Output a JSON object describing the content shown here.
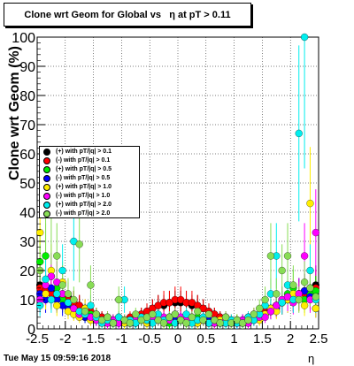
{
  "chart_data": {
    "type": "scatter",
    "title": "Clone wrt Geom for Global vs   η at pT > 0.11",
    "xlabel": "η",
    "ylabel": "Clone wrt Geom (%)",
    "xlim": [
      -2.5,
      2.5
    ],
    "ylim": [
      0,
      100
    ],
    "x_ticks": [
      "-2.5",
      "-2",
      "-1.5",
      "-1",
      "-0.5",
      "0",
      "0.5",
      "1",
      "1.5",
      "2",
      "2.5"
    ],
    "y_ticks": [
      "0",
      "10",
      "20",
      "30",
      "40",
      "50",
      "60",
      "70",
      "80",
      "90",
      "100"
    ],
    "grid": true,
    "legend_position": "left-middle",
    "series": [
      {
        "name": "(+) with pT/|q| > 0.1",
        "color": "#000000",
        "x": [
          -2.45,
          -2.35,
          -2.25,
          -2.15,
          -2.05,
          -1.95,
          -1.85,
          -1.75,
          -1.65,
          -1.55,
          -1.45,
          -1.35,
          -1.25,
          -1.15,
          -1.05,
          -0.95,
          -0.85,
          -0.75,
          -0.65,
          -0.55,
          -0.45,
          -0.35,
          -0.25,
          -0.15,
          -0.05,
          0.05,
          0.15,
          0.25,
          0.35,
          0.45,
          0.55,
          0.65,
          0.75,
          0.85,
          0.95,
          1.05,
          1.15,
          1.25,
          1.35,
          1.45,
          1.55,
          1.65,
          1.75,
          1.85,
          1.95,
          2.05,
          2.15,
          2.25,
          2.35,
          2.45
        ],
        "y": [
          15,
          14,
          13,
          12,
          12,
          11,
          9,
          8,
          7,
          6,
          5,
          4,
          4,
          3,
          3,
          3,
          3,
          4,
          5,
          6,
          7,
          8,
          8,
          9,
          9,
          9,
          9,
          8,
          8,
          7,
          6,
          5,
          4,
          4,
          3,
          3,
          3,
          4,
          4,
          5,
          6,
          7,
          8,
          9,
          10,
          11,
          12,
          13,
          14,
          15
        ]
      },
      {
        "name": "(-) with pT/|q| > 0.1",
        "color": "#ff0000",
        "x": [
          -2.45,
          -2.35,
          -2.25,
          -2.15,
          -2.05,
          -1.95,
          -1.85,
          -1.75,
          -1.65,
          -1.55,
          -1.45,
          -1.35,
          -1.25,
          -1.15,
          -1.05,
          -0.95,
          -0.85,
          -0.75,
          -0.65,
          -0.55,
          -0.45,
          -0.35,
          -0.25,
          -0.15,
          -0.05,
          0.05,
          0.15,
          0.25,
          0.35,
          0.45,
          0.55,
          0.65,
          0.75,
          0.85,
          0.95,
          1.05,
          1.15,
          1.25,
          1.35,
          1.45,
          1.55,
          1.65,
          1.75,
          1.85,
          1.95,
          2.05,
          2.15,
          2.25,
          2.35,
          2.45
        ],
        "y": [
          14,
          13,
          12,
          11,
          11,
          10,
          9,
          8,
          7,
          6,
          5,
          4,
          4,
          3,
          3,
          3,
          4,
          4,
          5,
          6,
          7,
          8,
          9,
          9,
          10,
          10,
          9,
          9,
          8,
          7,
          6,
          5,
          4,
          4,
          3,
          3,
          3,
          4,
          5,
          5,
          6,
          7,
          8,
          9,
          10,
          10,
          11,
          12,
          13,
          14
        ]
      },
      {
        "name": "(+) with pT/|q| > 0.5",
        "color": "#00ee00",
        "x": [
          -2.45,
          -2.35,
          -2.25,
          -2.15,
          -2.05,
          -1.95,
          -1.85,
          -1.75,
          -1.65,
          -1.55,
          -1.45,
          -1.35,
          -1.25,
          -1.15,
          -1.05,
          -0.95,
          -0.85,
          -0.75,
          -0.65,
          -0.55,
          -0.45,
          -0.35,
          -0.25,
          -0.15,
          -0.05,
          0.05,
          0.15,
          0.25,
          0.35,
          0.45,
          0.55,
          0.65,
          0.75,
          0.85,
          0.95,
          1.05,
          1.15,
          1.25,
          1.35,
          1.45,
          1.55,
          1.65,
          1.75,
          1.85,
          1.95,
          2.05,
          2.15,
          2.25,
          2.35,
          2.45
        ],
        "y": [
          23,
          25,
          18,
          14,
          10,
          8,
          6,
          5,
          4,
          5,
          4,
          3,
          2,
          3,
          3,
          2,
          2,
          2,
          3,
          2,
          3,
          4,
          3,
          2,
          4,
          3,
          2,
          3,
          4,
          3,
          2,
          3,
          2,
          2,
          2,
          3,
          2,
          2,
          3,
          4,
          5,
          6,
          8,
          10,
          12,
          14,
          12,
          10,
          12,
          13
        ]
      },
      {
        "name": "(-) with pT/|q| > 0.5",
        "color": "#0000ff",
        "x": [
          -2.45,
          -2.35,
          -2.25,
          -2.15,
          -2.05,
          -1.95,
          -1.85,
          -1.75,
          -1.65,
          -1.55,
          -1.45,
          -1.35,
          -1.25,
          -1.15,
          -1.05,
          -0.95,
          -0.85,
          -0.75,
          -0.65,
          -0.55,
          -0.45,
          -0.35,
          -0.25,
          -0.15,
          -0.05,
          0.05,
          0.15,
          0.25,
          0.35,
          0.45,
          0.55,
          0.65,
          0.75,
          0.85,
          0.95,
          1.05,
          1.15,
          1.25,
          1.35,
          1.45,
          1.55,
          1.65,
          1.75,
          1.85,
          1.95,
          2.05,
          2.15,
          2.25,
          2.35,
          2.45
        ],
        "y": [
          12,
          10,
          14,
          10,
          8,
          7,
          6,
          5,
          4,
          4,
          3,
          3,
          3,
          2,
          2,
          3,
          2,
          2,
          3,
          3,
          4,
          3,
          3,
          4,
          3,
          3,
          4,
          3,
          2,
          3,
          3,
          2,
          2,
          2,
          2,
          2,
          3,
          3,
          4,
          5,
          5,
          6,
          7,
          9,
          10,
          11,
          12,
          13,
          11,
          7
        ]
      },
      {
        "name": "(+) with pT/|q| > 1.0",
        "color": "#ffee00",
        "x": [
          -2.45,
          -2.35,
          -2.25,
          -2.15,
          -2.05,
          -1.95,
          -1.85,
          -1.75,
          -1.65,
          -1.55,
          -1.45,
          -1.35,
          -1.25,
          -1.15,
          -1.05,
          -0.95,
          -0.85,
          -0.75,
          -0.65,
          -0.55,
          -0.45,
          -0.35,
          -0.25,
          -0.15,
          -0.05,
          0.05,
          0.15,
          0.25,
          0.35,
          0.45,
          0.55,
          0.65,
          0.75,
          0.85,
          0.95,
          1.05,
          1.15,
          1.25,
          1.35,
          1.45,
          1.55,
          1.65,
          1.75,
          1.85,
          1.95,
          2.05,
          2.15,
          2.25,
          2.35,
          2.45
        ],
        "y": [
          33,
          12,
          20,
          8,
          16,
          6,
          5,
          4,
          7,
          3,
          4,
          2,
          3,
          2,
          4,
          2,
          3,
          3,
          4,
          2,
          3,
          4,
          2,
          3,
          2,
          3,
          4,
          3,
          2,
          3,
          2,
          2,
          3,
          2,
          2,
          3,
          2,
          3,
          4,
          3,
          5,
          7,
          6,
          9,
          10,
          12,
          11,
          8,
          43,
          7
        ]
      },
      {
        "name": "(-) with pT/|q| > 1.0",
        "color": "#ff00ff",
        "x": [
          -2.45,
          -2.35,
          -2.25,
          -2.15,
          -2.05,
          -1.95,
          -1.85,
          -1.75,
          -1.65,
          -1.55,
          -1.45,
          -1.35,
          -1.25,
          -1.15,
          -1.05,
          -0.95,
          -0.85,
          -0.75,
          -0.65,
          -0.55,
          -0.45,
          -0.35,
          -0.25,
          -0.15,
          -0.05,
          0.05,
          0.15,
          0.25,
          0.35,
          0.45,
          0.55,
          0.65,
          0.75,
          0.85,
          0.95,
          1.05,
          1.15,
          1.25,
          1.35,
          1.45,
          1.55,
          1.65,
          1.75,
          1.85,
          1.95,
          2.05,
          2.15,
          2.25,
          2.35,
          2.45
        ],
        "y": [
          10,
          15,
          18,
          16,
          12,
          9,
          7,
          5,
          6,
          4,
          3,
          3,
          2,
          3,
          2,
          3,
          2,
          3,
          4,
          3,
          4,
          3,
          4,
          3,
          5,
          4,
          3,
          4,
          3,
          3,
          2,
          2,
          2,
          3,
          2,
          2,
          3,
          2,
          3,
          4,
          4,
          6,
          8,
          10,
          11,
          9,
          12,
          25,
          10,
          33
        ]
      },
      {
        "name": "(+) with pT/|q| > 2.0",
        "color": "#00eeee",
        "x": [
          -2.45,
          -2.35,
          -2.25,
          -2.15,
          -2.05,
          -1.95,
          -1.85,
          -1.75,
          -1.65,
          -1.55,
          -1.45,
          -1.35,
          -1.25,
          -1.15,
          -1.05,
          -0.95,
          -0.85,
          -0.75,
          -0.65,
          -0.55,
          -0.45,
          -0.35,
          -0.25,
          -0.15,
          -0.05,
          0.05,
          0.15,
          0.25,
          0.35,
          0.45,
          0.55,
          0.65,
          0.75,
          0.85,
          0.95,
          1.05,
          1.15,
          1.25,
          1.35,
          1.45,
          1.55,
          1.65,
          1.75,
          1.85,
          1.95,
          2.05,
          2.15,
          2.25,
          2.35,
          2.45
        ],
        "y": [
          8,
          17,
          10,
          12,
          20,
          9,
          30,
          6,
          5,
          8,
          4,
          2,
          3,
          2,
          4,
          10,
          3,
          2,
          4,
          3,
          2,
          5,
          3,
          4,
          2,
          3,
          5,
          2,
          3,
          4,
          2,
          3,
          2,
          2,
          3,
          2,
          2,
          4,
          3,
          5,
          8,
          12,
          25,
          9,
          15,
          10,
          67,
          100,
          20,
          10
        ]
      },
      {
        "name": "(-) with pT/|q| > 2.0",
        "color": "#88dd55",
        "x": [
          -2.45,
          -2.35,
          -2.25,
          -2.15,
          -2.05,
          -1.95,
          -1.85,
          -1.75,
          -1.65,
          -1.55,
          -1.45,
          -1.35,
          -1.25,
          -1.15,
          -1.05,
          -0.95,
          -0.85,
          -0.75,
          -0.65,
          -0.55,
          -0.45,
          -0.35,
          -0.25,
          -0.15,
          -0.05,
          0.05,
          0.15,
          0.25,
          0.35,
          0.45,
          0.55,
          0.65,
          0.75,
          0.85,
          0.95,
          1.05,
          1.15,
          1.25,
          1.35,
          1.45,
          1.55,
          1.65,
          1.75,
          1.85,
          1.95,
          2.05,
          2.15,
          2.25,
          2.35,
          2.45
        ],
        "y": [
          20,
          43,
          40,
          25,
          15,
          12,
          10,
          29,
          6,
          15,
          5,
          3,
          4,
          2,
          10,
          3,
          2,
          5,
          3,
          4,
          5,
          3,
          2,
          4,
          5,
          3,
          2,
          4,
          6,
          3,
          5,
          3,
          2,
          4,
          2,
          3,
          2,
          3,
          5,
          7,
          10,
          25,
          12,
          20,
          25,
          15,
          10,
          16,
          14,
          11
        ]
      }
    ]
  },
  "footer": {
    "date": "Tue May 15 09:59:16 2018"
  }
}
